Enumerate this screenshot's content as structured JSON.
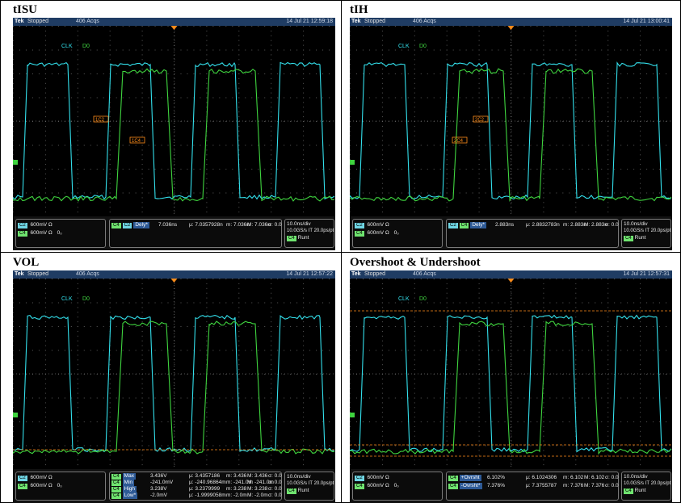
{
  "panels": [
    {
      "title": "tISU",
      "topbar": {
        "brand": "Tek",
        "state": "Stopped",
        "acqs": "406 Acqs",
        "timestamp": "14 Jul 21 12:59:18"
      },
      "clk_label": "CLK",
      "clk_value": "D0",
      "channels": [
        {
          "tag": "C2",
          "text": "600mV Ω"
        },
        {
          "tag": "C4",
          "text": "600mV Ω",
          "extra": "0₀"
        }
      ],
      "measurements": [
        {
          "tags": [
            "C4",
            "C2"
          ],
          "name": "Dely*",
          "value": "7.036ns",
          "mu": "7.0357928n",
          "m": "7.036n",
          "M": "7.036n",
          "sigma": "0.0"
        }
      ],
      "horizontal": {
        "line1": "10.0ns/div",
        "line2": "10.0GS/s IT 20.0ps/pt",
        "trigger_tag": "C4",
        "trigger": "Runt"
      }
    },
    {
      "title": "tIH",
      "topbar": {
        "brand": "Tek",
        "state": "Stopped",
        "acqs": "406 Acqs",
        "timestamp": "14 Jul 21 13:00:41"
      },
      "clk_label": "CLK",
      "clk_value": "D0",
      "channels": [
        {
          "tag": "C2",
          "text": "600mV Ω"
        },
        {
          "tag": "C4",
          "text": "600mV Ω",
          "extra": "0₀"
        }
      ],
      "measurements": [
        {
          "tags": [
            "C2",
            "C4"
          ],
          "name": "Dely*",
          "value": "2.883ns",
          "mu": "2.8832783n",
          "m": "2.883n",
          "M": "2.883n",
          "sigma": "0.0"
        }
      ],
      "horizontal": {
        "line1": "10.0ns/div",
        "line2": "10.0GS/s IT 20.0ps/pt",
        "trigger_tag": "C4",
        "trigger": "Runt"
      }
    },
    {
      "title": "VOL",
      "topbar": {
        "brand": "Tek",
        "state": "Stopped",
        "acqs": "406 Acqs",
        "timestamp": "14 Jul 21 12:57:22"
      },
      "clk_label": "CLK",
      "clk_value": "D0",
      "channels": [
        {
          "tag": "C2",
          "text": "600mV Ω"
        },
        {
          "tag": "C4",
          "text": "600mV Ω",
          "extra": "0₀"
        }
      ],
      "measurements": [
        {
          "tags": [
            "C4"
          ],
          "name": "Max",
          "value": "3.436V",
          "mu": "3.4357186",
          "m": "3.436",
          "M": "3.436",
          "sigma": "0.0"
        },
        {
          "tags": [
            "C4"
          ],
          "name": "Min",
          "value": "-241.0mV",
          "mu": "-240.96864m",
          "m": "-241.0m",
          "M": "-241.0m",
          "sigma": "0.0"
        },
        {
          "tags": [
            "C4"
          ],
          "name": "High",
          "value": "3.238V",
          "mu": "3.2379999",
          "m": "3.238",
          "M": "3.238",
          "sigma": "0.0"
        },
        {
          "tags": [
            "C4"
          ],
          "name": "Low*",
          "value": "-2.0mV",
          "mu": "-1.9999058m",
          "m": "-2.0m",
          "M": "-2.0m",
          "sigma": "0.0"
        }
      ],
      "horizontal": {
        "line1": "10.0ns/div",
        "line2": "10.0GS/s IT 20.0ps/pt",
        "trigger_tag": "C4",
        "trigger": "Runt"
      }
    },
    {
      "title": "Overshoot & Undershoot",
      "topbar": {
        "brand": "Tek",
        "state": "Stopped",
        "acqs": "406 Acqs",
        "timestamp": "14 Jul 21 12:57:31"
      },
      "clk_label": "CLK",
      "clk_value": "D0",
      "channels": [
        {
          "tag": "C2",
          "text": "600mV Ω"
        },
        {
          "tag": "C4",
          "text": "600mV Ω",
          "extra": "0₀"
        }
      ],
      "measurements": [
        {
          "tags": [
            "C4"
          ],
          "name": "+Ovrsht",
          "value": "6.102%",
          "mu": "6.1024306",
          "m": "6.102",
          "M": "6.102",
          "sigma": "0.0"
        },
        {
          "tags": [
            "C4"
          ],
          "name": "-Ovrsht*",
          "value": "7.376%",
          "mu": "7.3755787",
          "m": "7.376",
          "M": "7.376",
          "sigma": "0.0"
        }
      ],
      "horizontal": {
        "line1": "10.0ns/div",
        "line2": "10.0GS/s IT 20.0ps/pt",
        "trigger_tag": "C4",
        "trigger": "Runt"
      }
    }
  ],
  "marker_labels": {
    "tISU": [
      "1C2",
      "1C4"
    ],
    "tIH": [
      "2C4",
      "2C2"
    ]
  },
  "colors": {
    "clk_trace": "#33e0ec",
    "data_trace": "#3fd43f",
    "grid": "#5a5a5a",
    "screen": "#000000"
  }
}
